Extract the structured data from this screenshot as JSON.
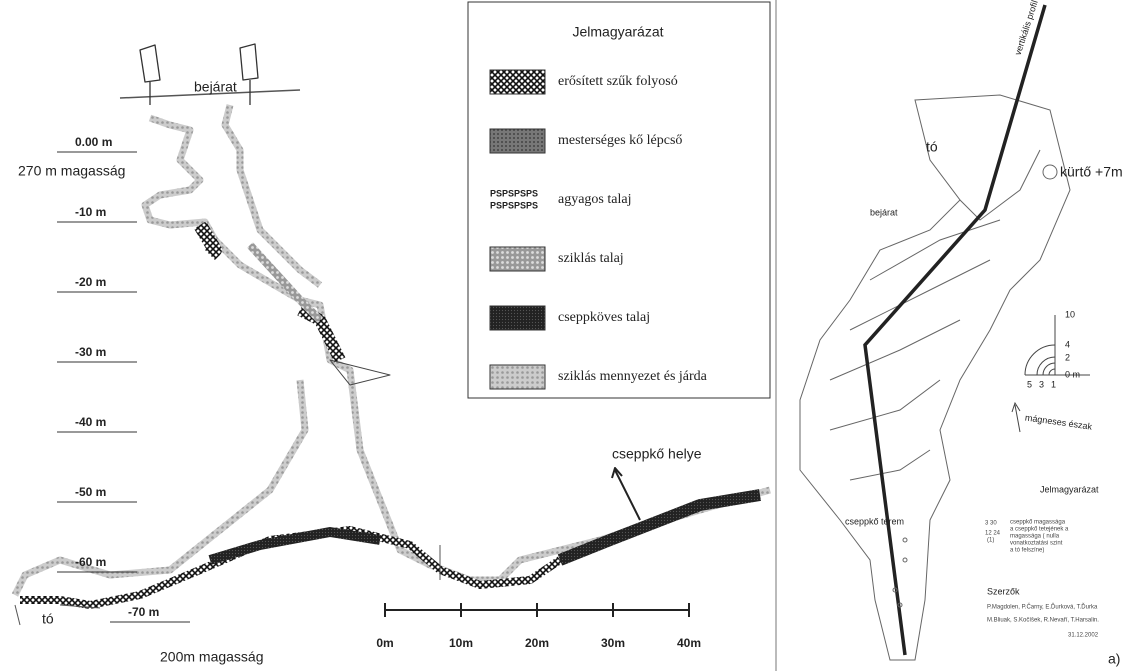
{
  "profile": {
    "entrance": "bejárat",
    "top_altitude": "270 m magasság",
    "bottom_altitude": "200m magasság",
    "lake": "tó",
    "dripstone_site": "cseppkő helye",
    "depth_marks": [
      "0.00 m",
      "-10 m",
      "-20 m",
      "-30 m",
      "-40 m",
      "-50 m",
      "-60 m",
      "-70 m"
    ],
    "legend": {
      "title": "Jelmagyarázat",
      "items": [
        "erősített szűk folyosó",
        "mesterséges kő lépcső",
        "agyagos talaj",
        "sziklás talaj",
        "cseppköves talaj",
        "sziklás mennyezet és járda"
      ],
      "clay_symbol": "PSPSPSPS"
    },
    "scale_bar": [
      "0m",
      "10m",
      "20m",
      "30m",
      "40m"
    ]
  },
  "plan": {
    "profile_line": "vertikális profil",
    "lake": "tó",
    "chimney": "kürtő +7m",
    "entrance": "bejárat",
    "hall": "cseppkő terem",
    "north": "mágneses észak",
    "compass_ticks": [
      "10",
      "4",
      "2",
      "0 m"
    ],
    "compass_bottom": [
      "5",
      "3",
      "1"
    ],
    "legend": {
      "title": "Jelmagyarázat",
      "sample_top": "3 30",
      "sample_bottom": "12 24",
      "sample_note": "(1)",
      "text": [
        "cseppkő magassága",
        "a cseppkő tetejének a",
        "magassága ( nulla",
        "vonatkoztatási szint",
        "a tó felszíne)"
      ]
    },
    "authors": {
      "title": "Szerzők",
      "lines": [
        "P.Magdolen, P.Čarny, E.Ďurková, T.Ďurka",
        "M.Bliuak, S.Kočíšek, R.Nevaří, T.Harsalin."
      ],
      "date": "31.12.2002"
    },
    "panel_label": "a)"
  }
}
